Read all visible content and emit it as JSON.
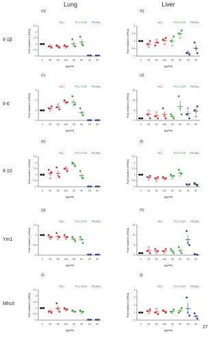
{
  "columns": [
    "Lung",
    "Liver"
  ],
  "rows": [
    "Il-1β",
    "Il-6",
    "Il-10",
    "Ym1",
    "MhcII"
  ],
  "page_number": "27",
  "chart_data": [
    {
      "type": "dot",
      "label": "(a)",
      "y_label": "Fold induction (mRNA)",
      "x_label": "(μg/ml)",
      "categories": [
        "0",
        "25",
        "50",
        "100",
        "25",
        "50",
        "25",
        "50"
      ],
      "colors": [
        "#000000",
        "#d62728",
        "#d62728",
        "#d62728",
        "#2ca02c",
        "#2ca02c",
        "#1f3d99",
        "#1f3d99"
      ],
      "legend": [
        {
          "name": "SiO₂",
          "color": "#d62728"
        },
        {
          "name": "PS-COOH",
          "color": "#2ca02c"
        },
        {
          "name": "PS-NH₂",
          "color": "#1f3d99"
        }
      ],
      "ylim": [
        0,
        2.5
      ],
      "yticks": [
        0,
        0.5,
        1,
        1.5,
        2,
        2.5
      ],
      "points": [
        [
          1,
          1,
          1
        ],
        [
          0.8,
          0.9,
          0.7
        ],
        [
          0.9,
          0.8,
          0.7
        ],
        [
          0.9,
          0.7,
          0.8
        ],
        [
          1.4,
          0.9,
          0.8
        ],
        [
          1.6,
          1.0,
          0.9
        ],
        [
          0.05,
          0.05,
          0.05
        ],
        [
          0.05,
          0.05,
          0.05
        ]
      ],
      "means": [
        1,
        0.8,
        0.8,
        0.8,
        1.03,
        1.17,
        0.05,
        0.05
      ],
      "errors": [
        0,
        0.06,
        0.06,
        0.06,
        0.19,
        0.22,
        0,
        0
      ]
    },
    {
      "type": "dot",
      "label": "(b)",
      "y_label": "Fold induction (mRNA)",
      "x_label": "(μg/ml)",
      "categories": [
        "0",
        "25",
        "50",
        "100",
        "25",
        "50",
        "25",
        "50"
      ],
      "colors": [
        "#000000",
        "#d62728",
        "#d62728",
        "#d62728",
        "#2ca02c",
        "#2ca02c",
        "#1f3d99",
        "#1f3d99"
      ],
      "legend": [
        {
          "name": "SiO₂",
          "color": "#d62728"
        },
        {
          "name": "PS-COOH",
          "color": "#2ca02c"
        },
        {
          "name": "PS-NH₂",
          "color": "#1f3d99"
        }
      ],
      "ylim": [
        0,
        2
      ],
      "yticks": [
        0,
        0.5,
        1,
        1.5,
        2
      ],
      "points": [
        [
          1,
          1,
          1
        ],
        [
          0.8,
          0.6,
          1.0
        ],
        [
          0.7,
          1.1,
          0.9
        ],
        [
          1.1,
          0.8,
          1.2
        ],
        [
          1.0,
          0.7,
          1.3
        ],
        [
          1.5,
          1.2,
          1.7
        ],
        [
          0.2,
          0.3,
          0.1
        ],
        [
          0.9,
          0.5,
          0.2
        ]
      ],
      "means": [
        1,
        0.8,
        0.9,
        1.03,
        1.0,
        1.47,
        0.2,
        0.53
      ],
      "errors": [
        0,
        0.12,
        0.12,
        0.12,
        0.17,
        0.15,
        0.06,
        0.2
      ]
    },
    {
      "type": "dot",
      "label": "(c)",
      "y_label": "Fold induction (mRNA)",
      "x_label": "(μg/ml)",
      "categories": [
        "0",
        "25",
        "50",
        "100",
        "25",
        "50",
        "25",
        "50"
      ],
      "colors": [
        "#000000",
        "#d62728",
        "#d62728",
        "#d62728",
        "#2ca02c",
        "#2ca02c",
        "#1f3d99",
        "#1f3d99"
      ],
      "legend": [
        {
          "name": "SiO₂",
          "color": "#d62728"
        },
        {
          "name": "PS-COOH",
          "color": "#2ca02c"
        },
        {
          "name": "PS-NH₂",
          "color": "#1f3d99"
        }
      ],
      "ylim": [
        0,
        3
      ],
      "yticks": [
        0,
        1,
        2,
        3
      ],
      "points": [
        [
          1,
          1,
          1
        ],
        [
          1.2,
          1.0,
          1.4
        ],
        [
          1.3,
          1.6,
          1.1
        ],
        [
          2.0,
          1.7,
          1.8
        ],
        [
          2.4,
          1.5,
          1.6
        ],
        [
          1.2,
          0.7,
          0.5
        ],
        [
          0.02,
          0.02,
          0.02
        ],
        [
          0.02,
          0.02,
          0.02
        ]
      ],
      "means": [
        1,
        1.2,
        1.33,
        1.83,
        1.83,
        0.8,
        0.02,
        0.02
      ],
      "errors": [
        0,
        0.12,
        0.15,
        0.09,
        0.29,
        0.21,
        0,
        0
      ]
    },
    {
      "type": "dot",
      "label": "(d)",
      "y_label": "Fold induction (mRNA)",
      "x_label": "(μg/ml)",
      "categories": [
        "0",
        "25",
        "50",
        "100",
        "25",
        "50",
        "25",
        "50"
      ],
      "colors": [
        "#000000",
        "#d62728",
        "#d62728",
        "#d62728",
        "#2ca02c",
        "#2ca02c",
        "#1f3d99",
        "#1f3d99"
      ],
      "legend": [
        {
          "name": "SiO₂",
          "color": "#d62728"
        },
        {
          "name": "PS-COOH",
          "color": "#2ca02c"
        },
        {
          "name": "PS-NH₂",
          "color": "#1f3d99"
        }
      ],
      "ylim": [
        0,
        15
      ],
      "yticks": [
        0,
        5,
        10,
        15
      ],
      "points": [
        [
          1,
          1,
          1
        ],
        [
          3,
          5,
          1
        ],
        [
          2,
          4,
          1
        ],
        [
          6,
          2,
          1
        ],
        [
          3,
          2,
          1
        ],
        [
          12,
          6,
          3
        ],
        [
          3,
          6,
          1
        ],
        [
          5,
          2,
          7
        ]
      ],
      "means": [
        1,
        3,
        2.33,
        3,
        2,
        7,
        3.33,
        4.67
      ],
      "errors": [
        0,
        1.15,
        0.88,
        1.53,
        0.58,
        2.65,
        1.45,
        1.45
      ]
    },
    {
      "type": "dot",
      "label": "(e)",
      "y_label": "Fold induction (mRNA)",
      "x_label": "(μg/ml)",
      "categories": [
        "0",
        "25",
        "50",
        "100",
        "25",
        "50",
        "25",
        "50"
      ],
      "colors": [
        "#000000",
        "#d62728",
        "#d62728",
        "#d62728",
        "#2ca02c",
        "#2ca02c",
        "#1f3d99",
        "#1f3d99"
      ],
      "legend": [
        {
          "name": "SiO₂",
          "color": "#d62728"
        },
        {
          "name": "PS-COOH",
          "color": "#2ca02c"
        },
        {
          "name": "PS-NH₂",
          "color": "#1f3d99"
        }
      ],
      "ylim": [
        0,
        2.5
      ],
      "yticks": [
        0,
        0.5,
        1,
        1.5,
        2,
        2.5
      ],
      "points": [
        [
          1,
          1,
          1
        ],
        [
          1.4,
          0.7,
          1.2
        ],
        [
          1.6,
          0.9,
          0.8
        ],
        [
          1.5,
          1.6,
          1.3
        ],
        [
          2.0,
          1.9,
          1.7
        ],
        [
          1.3,
          0.8,
          0.7
        ],
        [
          0.02,
          0.02,
          0.02
        ],
        [
          0.02,
          0.02,
          0.02
        ]
      ],
      "means": [
        1,
        1.1,
        1.1,
        1.47,
        1.87,
        0.93,
        0.02,
        0.02
      ],
      "errors": [
        0,
        0.21,
        0.25,
        0.09,
        0.09,
        0.19,
        0,
        0
      ]
    },
    {
      "type": "dot",
      "label": "(f)",
      "y_label": "Fold induction (mRNA)",
      "x_label": "(μg/ml)",
      "categories": [
        "0",
        "25",
        "50",
        "100",
        "25",
        "50",
        "25",
        "50"
      ],
      "colors": [
        "#000000",
        "#d62728",
        "#d62728",
        "#d62728",
        "#2ca02c",
        "#2ca02c",
        "#1f3d99",
        "#1f3d99"
      ],
      "legend": [
        {
          "name": "SiO₂",
          "color": "#d62728"
        },
        {
          "name": "PS-COOH",
          "color": "#2ca02c"
        },
        {
          "name": "PS-NH₂",
          "color": "#1f3d99"
        }
      ],
      "ylim": [
        0,
        2.5
      ],
      "yticks": [
        0,
        0.5,
        1,
        1.5,
        2,
        2.5
      ],
      "points": [
        [
          1,
          1,
          1
        ],
        [
          0.8,
          0.6,
          0.9
        ],
        [
          0.7,
          0.5,
          0.8
        ],
        [
          0.8,
          0.6,
          0.7
        ],
        [
          1.0,
          0.7,
          0.9
        ],
        [
          1.4,
          0.9,
          1.1
        ],
        [
          0.2,
          0.1,
          0.2
        ],
        [
          0.3,
          0.2,
          0.1
        ]
      ],
      "means": [
        1,
        0.77,
        0.67,
        0.7,
        0.87,
        1.13,
        0.17,
        0.2
      ],
      "errors": [
        0,
        0.09,
        0.09,
        0.06,
        0.09,
        0.15,
        0.03,
        0.06
      ]
    },
    {
      "type": "dot",
      "label": "(g)",
      "y_label": "Fold induction (mRNA)",
      "x_label": "(μg/ml)",
      "categories": [
        "0",
        "25",
        "50",
        "100",
        "25",
        "50",
        "25",
        "50"
      ],
      "colors": [
        "#000000",
        "#d62728",
        "#d62728",
        "#d62728",
        "#2ca02c",
        "#2ca02c",
        "#1f3d99",
        "#1f3d99"
      ],
      "legend": [
        {
          "name": "SiO₂",
          "color": "#d62728"
        },
        {
          "name": "PS-COOH",
          "color": "#2ca02c"
        },
        {
          "name": "PS-NH₂",
          "color": "#1f3d99"
        }
      ],
      "ylim": [
        0,
        1.5
      ],
      "yticks": [
        0,
        0.5,
        1,
        1.5
      ],
      "points": [
        [
          1,
          1,
          1
        ],
        [
          1.0,
          0.8,
          0.9
        ],
        [
          1.1,
          0.8,
          0.9
        ],
        [
          1.0,
          0.8,
          0.9
        ],
        [
          0.9,
          0.8,
          0.7
        ],
        [
          0.9,
          0.8,
          0.6
        ],
        [
          0.03,
          0.03,
          0.03
        ],
        [
          0.03,
          0.03,
          0.03
        ]
      ],
      "means": [
        1,
        0.9,
        0.93,
        0.9,
        0.8,
        0.77,
        0.03,
        0.03
      ],
      "errors": [
        0,
        0.06,
        0.09,
        0.06,
        0.06,
        0.09,
        0,
        0
      ]
    },
    {
      "type": "dot",
      "label": "(h)",
      "y_label": "Fold induction (mRNA)",
      "x_label": "(μg/ml)",
      "categories": [
        "0",
        "25",
        "50",
        "100",
        "25",
        "50",
        "25",
        "50"
      ],
      "colors": [
        "#000000",
        "#d62728",
        "#d62728",
        "#d62728",
        "#2ca02c",
        "#2ca02c",
        "#1f3d99",
        "#1f3d99"
      ],
      "legend": [
        {
          "name": "SiO₂",
          "color": "#d62728"
        },
        {
          "name": "PS-COOH",
          "color": "#2ca02c"
        },
        {
          "name": "PS-NH₂",
          "color": "#1f3d99"
        }
      ],
      "ylim": [
        0,
        15
      ],
      "yticks": [
        0,
        5,
        10,
        15
      ],
      "points": [
        [
          1,
          1,
          1
        ],
        [
          2,
          4,
          1
        ],
        [
          3,
          1,
          2
        ],
        [
          2,
          1,
          3
        ],
        [
          3,
          2,
          1
        ],
        [
          4,
          2,
          1
        ],
        [
          12,
          6,
          5
        ],
        [
          0.5,
          0.3,
          0.2
        ]
      ],
      "means": [
        1,
        2.33,
        2,
        2,
        2,
        2.33,
        7.67,
        0.33
      ],
      "errors": [
        0,
        0.88,
        0.58,
        0.58,
        0.58,
        0.88,
        2.19,
        0.09
      ]
    },
    {
      "type": "dot",
      "label": "(i)",
      "y_label": "Fold induction (mRNA)",
      "x_label": "(μg/ml)",
      "categories": [
        "0",
        "25",
        "50",
        "100",
        "25",
        "50",
        "25",
        "50"
      ],
      "colors": [
        "#000000",
        "#d62728",
        "#d62728",
        "#d62728",
        "#2ca02c",
        "#2ca02c",
        "#1f3d99",
        "#1f3d99"
      ],
      "legend": [
        {
          "name": "SiO₂",
          "color": "#d62728"
        },
        {
          "name": "PS-COOH",
          "color": "#2ca02c"
        },
        {
          "name": "PS-NH₂",
          "color": "#1f3d99"
        }
      ],
      "ylim": [
        0,
        2.5
      ],
      "yticks": [
        0,
        0.5,
        1,
        1.5,
        2,
        2.5
      ],
      "points": [
        [
          1,
          1,
          1
        ],
        [
          0.7,
          0.8,
          0.6
        ],
        [
          1.4,
          0.9,
          0.7
        ],
        [
          1.0,
          0.8,
          0.9
        ],
        [
          0.8,
          0.7,
          0.7
        ],
        [
          0.8,
          0.6,
          0.7
        ],
        [
          0.03,
          0.03,
          0.03
        ],
        [
          0.03,
          0.03,
          0.03
        ]
      ],
      "means": [
        1,
        0.7,
        1.0,
        0.9,
        0.73,
        0.7,
        0.03,
        0.03
      ],
      "errors": [
        0,
        0.06,
        0.21,
        0.06,
        0.03,
        0.06,
        0,
        0
      ]
    },
    {
      "type": "dot",
      "label": "(j)",
      "y_label": "Fold induction (mRNA)",
      "x_label": "(μg/ml)",
      "categories": [
        "0",
        "25",
        "50",
        "100",
        "25",
        "50",
        "25",
        "50"
      ],
      "colors": [
        "#000000",
        "#d62728",
        "#d62728",
        "#d62728",
        "#2ca02c",
        "#2ca02c",
        "#1f3d99",
        "#1f3d99"
      ],
      "legend": [
        {
          "name": "SiO₂",
          "color": "#d62728"
        },
        {
          "name": "PS-COOH",
          "color": "#2ca02c"
        },
        {
          "name": "PS-NH₂",
          "color": "#1f3d99"
        }
      ],
      "ylim": [
        0,
        4
      ],
      "yticks": [
        0,
        1,
        2,
        3,
        4
      ],
      "points": [
        [
          1,
          1,
          1
        ],
        [
          1.2,
          0.9,
          1.4
        ],
        [
          1.0,
          1.5,
          0.8
        ],
        [
          1.3,
          1.2,
          1.0
        ],
        [
          1.1,
          0.9,
          1.4
        ],
        [
          1.0,
          1.2,
          1.6
        ],
        [
          3.0,
          1.0,
          0.6
        ],
        [
          0.9,
          0.5,
          0.2
        ]
      ],
      "means": [
        1,
        1.17,
        1.1,
        1.17,
        1.13,
        1.27,
        1.53,
        0.53
      ],
      "errors": [
        0,
        0.15,
        0.21,
        0.09,
        0.15,
        0.18,
        0.74,
        0.2
      ]
    }
  ]
}
